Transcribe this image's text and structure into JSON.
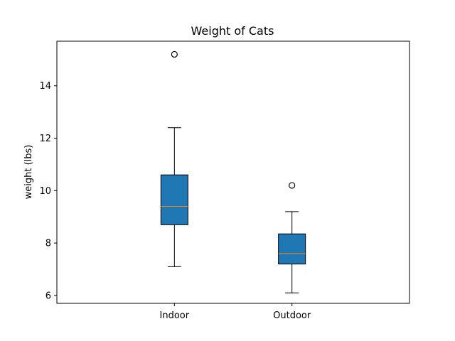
{
  "chart_data": {
    "type": "box",
    "title": "Weight of Cats",
    "xlabel": "",
    "ylabel": "weight (lbs)",
    "ylim": [
      5.7,
      15.7
    ],
    "yticks": [
      6,
      8,
      10,
      12,
      14
    ],
    "categories": [
      "Indoor",
      "Outdoor"
    ],
    "boxes": [
      {
        "label": "Indoor",
        "whisker_low": 7.1,
        "q1": 8.7,
        "median": 9.4,
        "q3": 10.6,
        "whisker_high": 12.4,
        "outliers": [
          15.2
        ]
      },
      {
        "label": "Outdoor",
        "whisker_low": 6.1,
        "q1": 7.2,
        "median": 7.6,
        "q3": 8.35,
        "whisker_high": 9.2,
        "outliers": [
          10.2
        ]
      }
    ],
    "colors": {
      "box_fill": "#1f77b4",
      "median": "#ff7f0e",
      "line": "#000000"
    },
    "grid": false,
    "legend": "none"
  }
}
